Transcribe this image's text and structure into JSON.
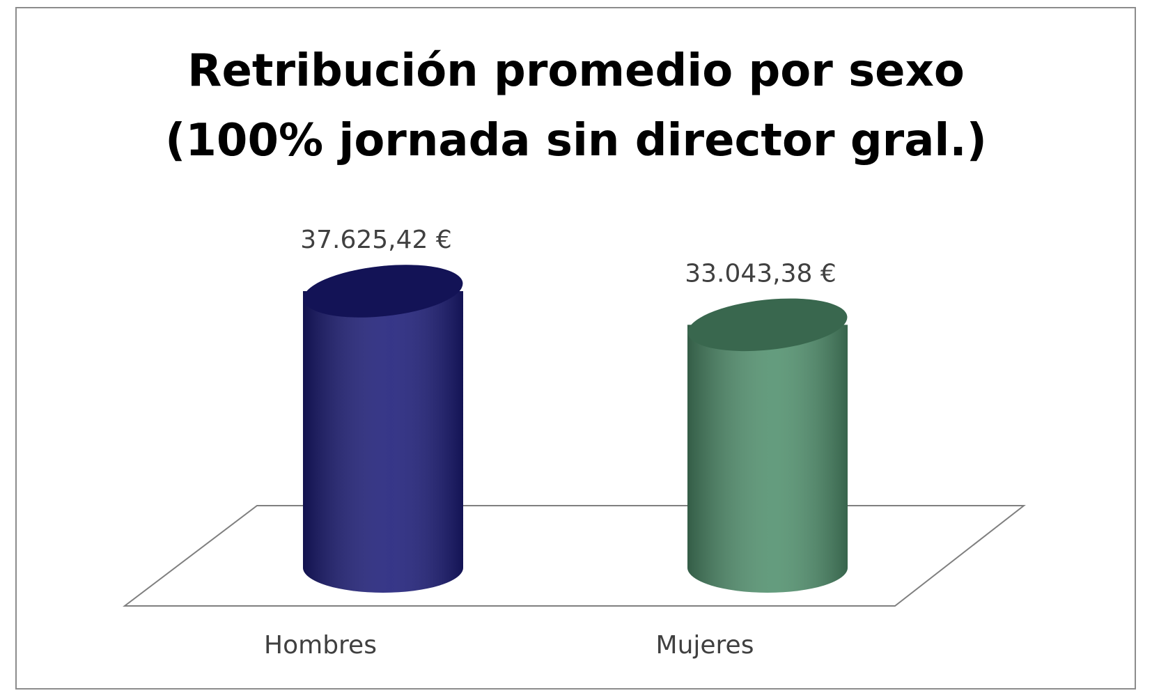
{
  "chart_data": {
    "type": "bar3d",
    "title": "Retribución promedio por sexo (100% jornada sin director gral.)",
    "categories": [
      "Hombres",
      "Mujeres"
    ],
    "values": [
      37625.42,
      33043.38
    ],
    "value_labels": [
      "37.625,42 €",
      "33.043,38 €"
    ],
    "colors": [
      "#1b1b78",
      "#4f8f6c"
    ]
  }
}
